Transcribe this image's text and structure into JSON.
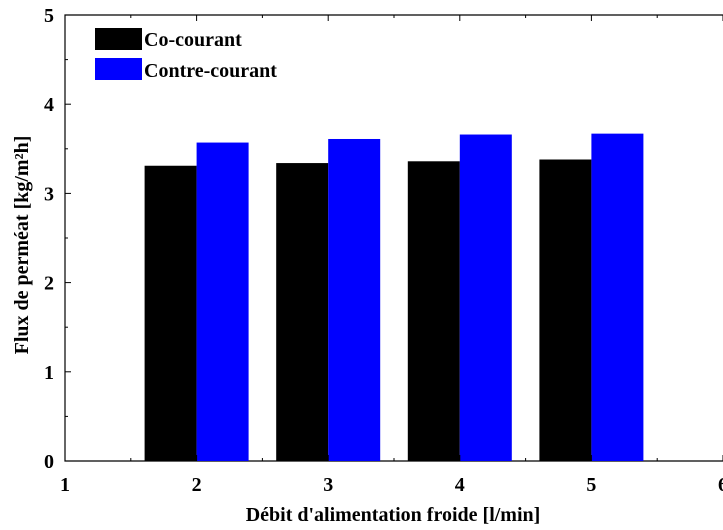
{
  "chart_data": {
    "type": "bar",
    "title": "",
    "xlabel": "Débit d'alimentation froide [l/min]",
    "ylabel": "Flux de perméat [kg/m²h]",
    "x_ticks": [
      "1",
      "2",
      "3",
      "4",
      "5",
      "6"
    ],
    "y_ticks": [
      "0",
      "1",
      "2",
      "3",
      "4",
      "5"
    ],
    "xlim": [
      1,
      6
    ],
    "ylim": [
      0,
      5
    ],
    "categories": [
      2,
      3,
      4,
      5
    ],
    "series": [
      {
        "name": "Co-courant",
        "color": "#000000",
        "values": [
          3.31,
          3.34,
          3.36,
          3.38
        ]
      },
      {
        "name": "Contre-courant",
        "color": "#0000ff",
        "values": [
          3.57,
          3.61,
          3.66,
          3.67
        ]
      }
    ],
    "legend": "top-left",
    "grid": false
  }
}
